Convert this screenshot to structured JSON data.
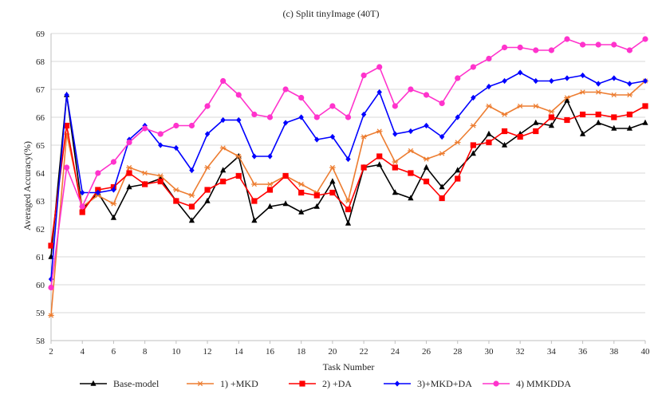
{
  "chart_data": {
    "type": "line",
    "title": "(c)  Split tinyImage  (40T)",
    "xlabel": "Task Number",
    "ylabel": "Averaged Accuracy(%)",
    "xlim": [
      2,
      40
    ],
    "ylim": [
      58,
      69
    ],
    "x_tick_labels": [
      "2",
      "4",
      "6",
      "8",
      "10",
      "12",
      "14",
      "16",
      "18",
      "20",
      "22",
      "24",
      "26",
      "28",
      "30",
      "32",
      "34",
      "36",
      "38",
      "40"
    ],
    "y_tick_labels": [
      "58",
      "59",
      "60",
      "61",
      "62",
      "63",
      "64",
      "65",
      "66",
      "67",
      "68",
      "69"
    ],
    "grid": true,
    "legend_position": "bottom",
    "x": [
      2,
      3,
      4,
      5,
      6,
      7,
      8,
      9,
      10,
      11,
      12,
      13,
      14,
      15,
      16,
      17,
      18,
      19,
      20,
      21,
      22,
      23,
      24,
      25,
      26,
      27,
      28,
      29,
      30,
      31,
      32,
      33,
      34,
      35,
      36,
      37,
      38,
      39,
      40
    ],
    "series": [
      {
        "name": "Base-model",
        "color": "#000000",
        "marker": "triangle",
        "values": [
          61.0,
          66.8,
          62.7,
          63.3,
          62.4,
          63.5,
          63.6,
          63.8,
          63.0,
          62.3,
          63.0,
          64.1,
          64.6,
          62.3,
          62.8,
          62.9,
          62.6,
          62.8,
          63.7,
          62.2,
          64.2,
          64.3,
          63.3,
          63.1,
          64.2,
          63.5,
          64.1,
          64.7,
          65.4,
          65.0,
          65.4,
          65.8,
          65.7,
          66.6,
          65.4,
          65.8,
          65.6,
          65.6,
          65.8
        ]
      },
      {
        "name": "1) +MKD",
        "color": "#ED7D31",
        "marker": "asterisk",
        "values": [
          58.9,
          65.4,
          62.8,
          63.2,
          62.9,
          64.2,
          64.0,
          63.9,
          63.4,
          63.2,
          64.2,
          64.9,
          64.6,
          63.6,
          63.6,
          63.9,
          63.6,
          63.3,
          64.2,
          63.0,
          65.3,
          65.5,
          64.4,
          64.8,
          64.5,
          64.7,
          65.1,
          65.7,
          66.4,
          66.1,
          66.4,
          66.4,
          66.2,
          66.7,
          66.9,
          66.9,
          66.8,
          66.8,
          67.3
        ]
      },
      {
        "name": "2) +DA",
        "color": "#FF0000",
        "marker": "square",
        "values": [
          61.4,
          65.7,
          62.6,
          63.4,
          63.5,
          64.0,
          63.6,
          63.7,
          63.0,
          62.8,
          63.4,
          63.7,
          63.9,
          63.0,
          63.4,
          63.9,
          63.3,
          63.2,
          63.3,
          62.7,
          64.2,
          64.6,
          64.2,
          64.0,
          63.7,
          63.1,
          63.8,
          65.0,
          65.1,
          65.5,
          65.3,
          65.5,
          66.0,
          65.9,
          66.1,
          66.1,
          66.0,
          66.1,
          66.4
        ]
      },
      {
        "name": "3)+MKD+DA",
        "color": "#0000FF",
        "marker": "diamond",
        "values": [
          60.2,
          66.8,
          63.3,
          63.3,
          63.4,
          65.2,
          65.7,
          65.0,
          64.9,
          64.1,
          65.4,
          65.9,
          65.9,
          64.6,
          64.6,
          65.8,
          66.0,
          65.2,
          65.3,
          64.5,
          66.1,
          66.9,
          65.4,
          65.5,
          65.7,
          65.3,
          66.0,
          66.7,
          67.1,
          67.3,
          67.6,
          67.3,
          67.3,
          67.4,
          67.5,
          67.2,
          67.4,
          67.2,
          67.3
        ]
      },
      {
        "name": "4) MMKDDA",
        "color": "#FF33CC",
        "marker": "circle",
        "values": [
          59.9,
          64.2,
          62.8,
          64.0,
          64.4,
          65.1,
          65.6,
          65.4,
          65.7,
          65.7,
          66.4,
          67.3,
          66.8,
          66.1,
          66.0,
          67.0,
          66.7,
          66.0,
          66.4,
          66.0,
          67.5,
          67.8,
          66.4,
          67.0,
          66.8,
          66.5,
          67.4,
          67.8,
          68.1,
          68.5,
          68.5,
          68.4,
          68.4,
          68.8,
          68.6,
          68.6,
          68.6,
          68.4,
          68.8
        ]
      }
    ]
  }
}
